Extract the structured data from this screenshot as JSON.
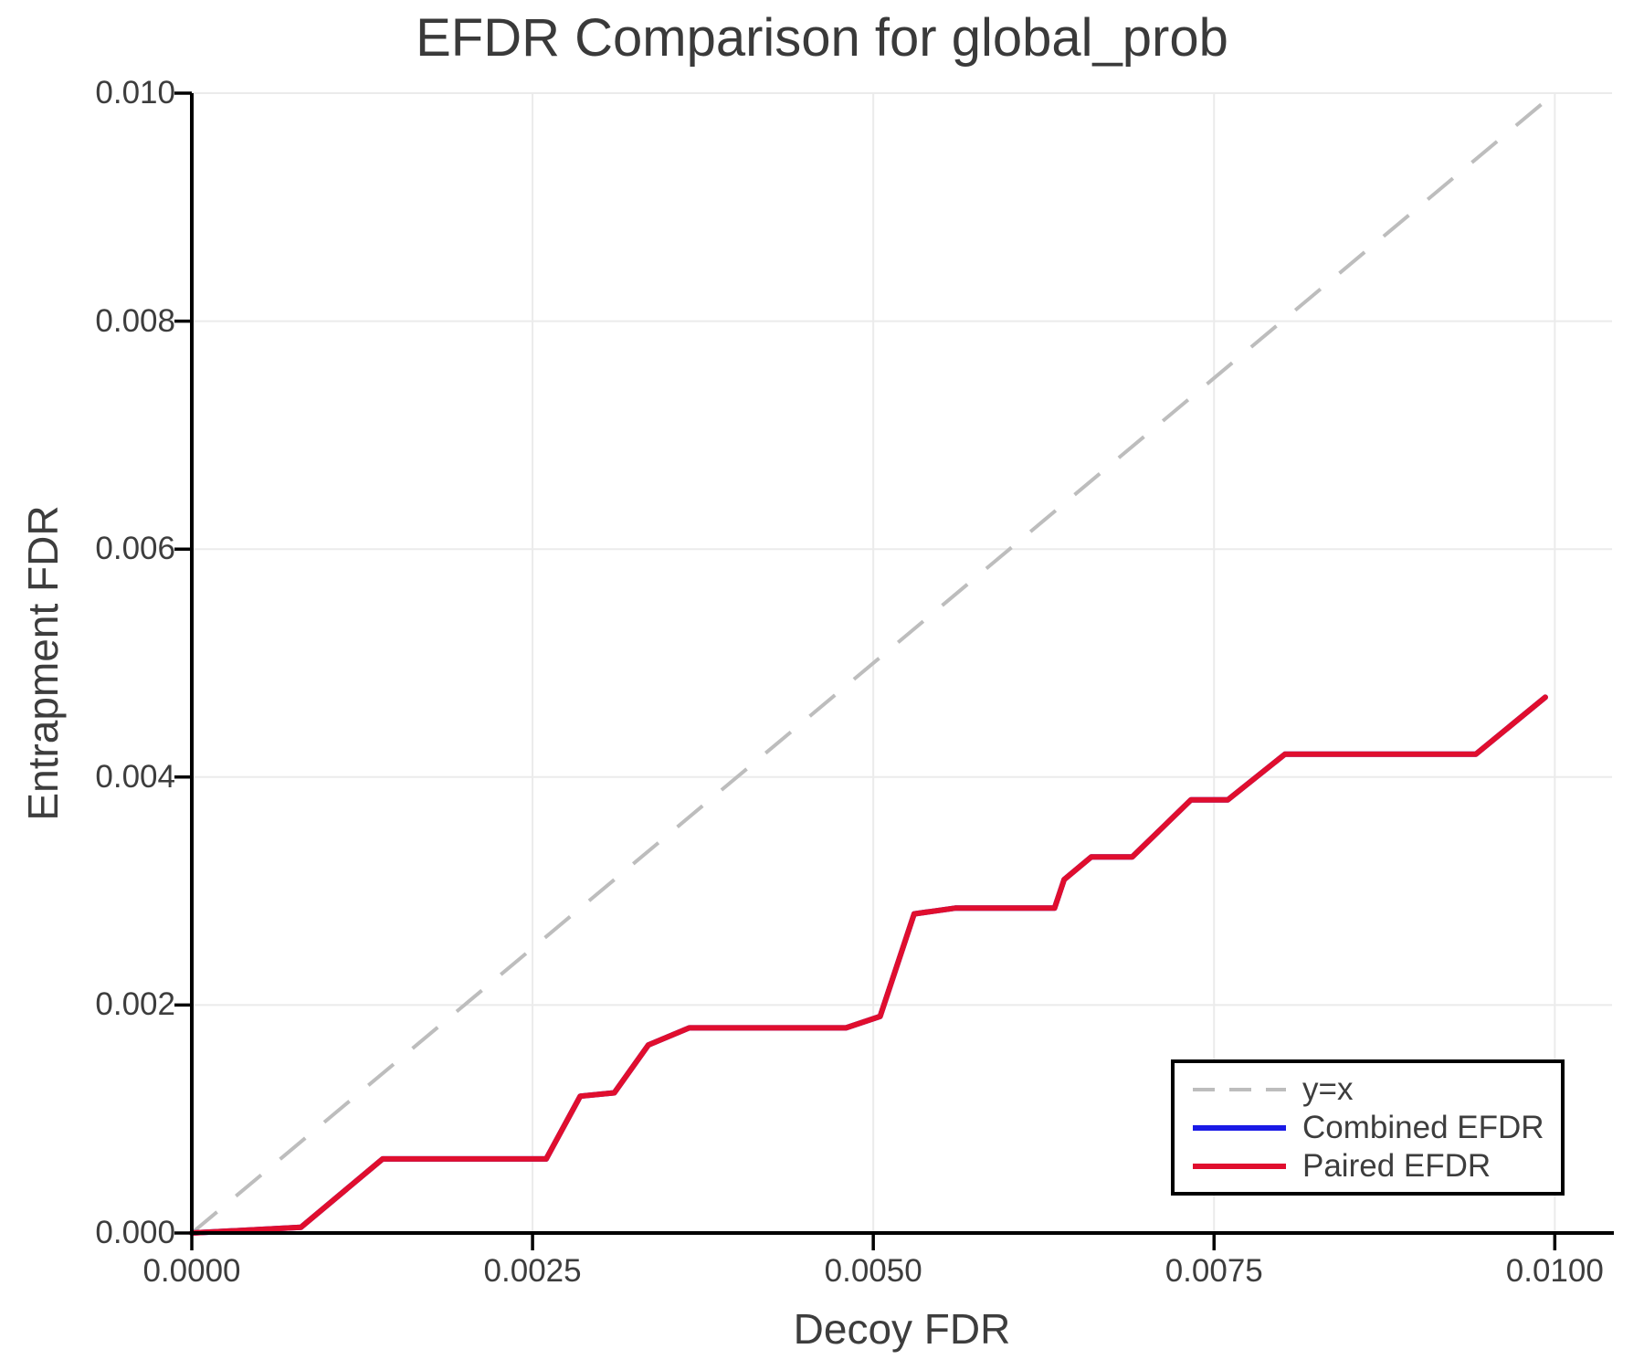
{
  "figure": {
    "background": "#ffffff",
    "text_color": "#3d3d3d",
    "spine_color": "#000000",
    "grid_color": "#ebebeb"
  },
  "chart_data": {
    "type": "line",
    "title": "EFDR Comparison for global_prob",
    "xlabel": "Decoy FDR",
    "ylabel": "Entrapment FDR",
    "xlim": [
      0,
      0.01042
    ],
    "ylim": [
      0,
      0.01
    ],
    "grid": true,
    "legend_position": "lower right",
    "x_ticks": [
      0,
      0.0025,
      0.005,
      0.0075,
      0.01
    ],
    "x_ticklabels": [
      "0.0000",
      "0.0025",
      "0.0050",
      "0.0075",
      "0.0100"
    ],
    "y_ticks": [
      0,
      0.002,
      0.004,
      0.006,
      0.008,
      0.01
    ],
    "y_ticklabels": [
      "0.000",
      "0.002",
      "0.004",
      "0.006",
      "0.008",
      "0.010"
    ],
    "series": [
      {
        "name": "y=x",
        "style": "dashed",
        "color": "#bdbdbd",
        "x": [
          0,
          0.00995
        ],
        "y": [
          0,
          0.00995
        ]
      },
      {
        "name": "Combined EFDR",
        "style": "solid",
        "color": "#1a1ae6",
        "x": [
          0.0,
          0.0008,
          0.0014,
          0.0026,
          0.00285,
          0.0031,
          0.00335,
          0.00365,
          0.0048,
          0.00505,
          0.0053,
          0.0056,
          0.00633,
          0.0064,
          0.0066,
          0.0069,
          0.00733,
          0.0076,
          0.00802,
          0.00942,
          0.00993
        ],
        "y": [
          0.0,
          5e-05,
          0.00065,
          0.00065,
          0.0012,
          0.00123,
          0.00165,
          0.0018,
          0.0018,
          0.0019,
          0.0028,
          0.00285,
          0.00285,
          0.0031,
          0.0033,
          0.0033,
          0.0038,
          0.0038,
          0.0042,
          0.0042,
          0.0047
        ]
      },
      {
        "name": "Paired EFDR",
        "style": "solid",
        "color": "#e00e2e",
        "x": [
          0.0,
          0.0008,
          0.0014,
          0.0026,
          0.00285,
          0.0031,
          0.00335,
          0.00365,
          0.0048,
          0.00505,
          0.0053,
          0.0056,
          0.00633,
          0.0064,
          0.0066,
          0.0069,
          0.00733,
          0.0076,
          0.00802,
          0.00942,
          0.00993
        ],
        "y": [
          0.0,
          5e-05,
          0.00065,
          0.00065,
          0.0012,
          0.00123,
          0.00165,
          0.0018,
          0.0018,
          0.0019,
          0.0028,
          0.00285,
          0.00285,
          0.0031,
          0.0033,
          0.0033,
          0.0038,
          0.0038,
          0.0042,
          0.0042,
          0.0047
        ]
      }
    ]
  }
}
